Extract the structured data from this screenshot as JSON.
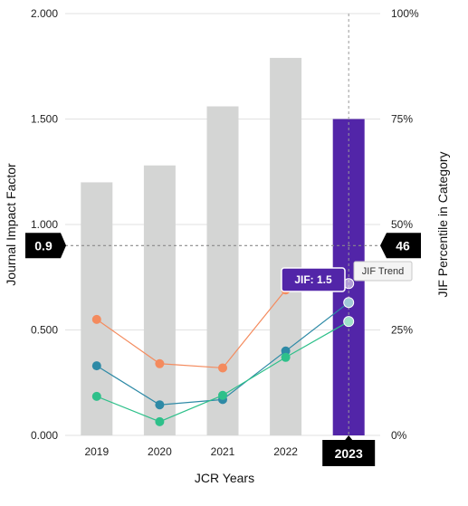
{
  "chart_data": {
    "type": "bar",
    "categories": [
      "2019",
      "2020",
      "2021",
      "2022",
      "2023"
    ],
    "bars": {
      "name": "Journal Impact Factor",
      "values": [
        1.2,
        1.28,
        1.56,
        1.79,
        1.5
      ],
      "highlight_index": 4,
      "color": "#d4d5d4",
      "highlight_color": "#5225a8"
    },
    "lines": [
      {
        "values": [
          0.55,
          0.34,
          0.32,
          0.69,
          null
        ],
        "color": "#f48b5e"
      },
      {
        "values": [
          0.33,
          0.145,
          0.17,
          0.4,
          0.63
        ],
        "color": "#2e8aa6"
      },
      {
        "values": [
          0.185,
          0.065,
          0.19,
          0.37,
          0.54
        ],
        "color": "#2ec08a"
      }
    ],
    "trend_points": [
      0.72,
      0.63,
      0.54
    ],
    "y_left": {
      "label": "Journal Impact Factor",
      "ticks": [
        "0.000",
        "0.500",
        "1.000",
        "1.500",
        "2.000"
      ],
      "tick_values": [
        0,
        0.5,
        1,
        1.5,
        2
      ],
      "range": [
        0,
        2
      ]
    },
    "y_right": {
      "label": "JIF Percentile in Category",
      "ticks": [
        "0%",
        "25%",
        "50%",
        "75%",
        "100%"
      ],
      "tick_values": [
        0,
        25,
        50,
        75,
        100
      ],
      "range": [
        0,
        100
      ]
    },
    "xlabel": "JCR Years",
    "reference_line": {
      "value": 0.9,
      "left_label": "0.9",
      "right_label": "46"
    },
    "selected_year": "2023",
    "tooltip": {
      "prefix": "JIF: ",
      "value": "1.5"
    },
    "trend_label": "JIF Trend",
    "grid": true
  }
}
